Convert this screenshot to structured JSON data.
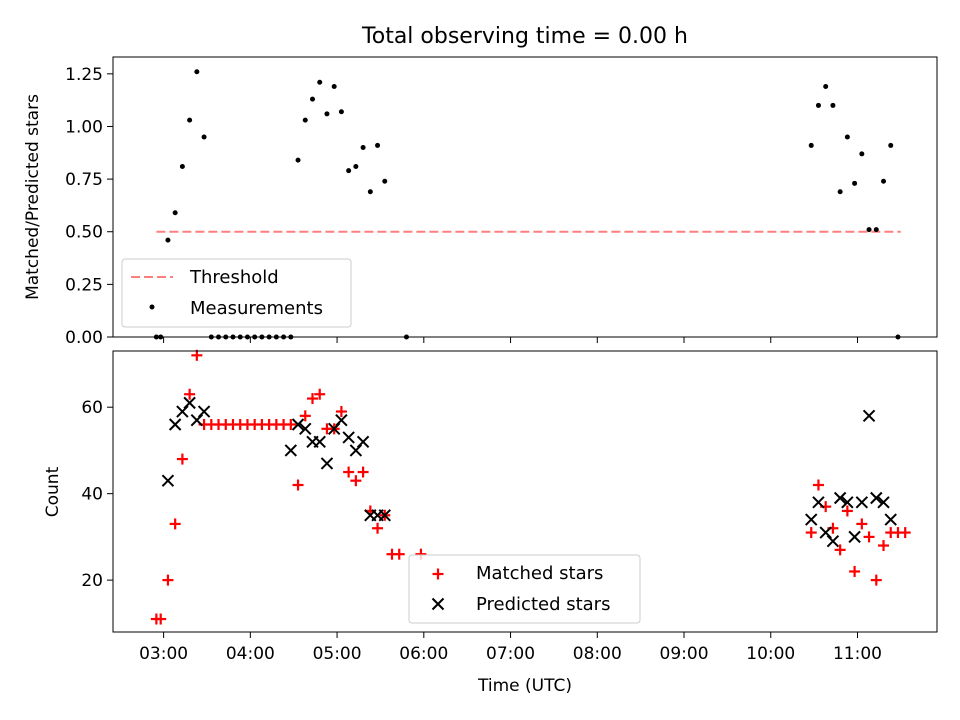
{
  "chart_data": [
    {
      "type": "scatter",
      "title": "Total observing time = 0.00 h",
      "xlabel": "",
      "ylabel": "Matched/Predicted stars",
      "ylim": [
        0,
        1.33
      ],
      "yticks": [
        "0.00",
        "0.25",
        "0.50",
        "0.75",
        "1.00",
        "1.25"
      ],
      "x_ticks_shared": true,
      "legend_position": "lower-left",
      "threshold": {
        "name": "Threshold",
        "value": 0.5,
        "x_start": "02:55",
        "x_end": "11:30",
        "color": "#ff7f7f"
      },
      "series": [
        {
          "name": "Measurements",
          "color": "#000000",
          "x": [
            "02:55",
            "02:58",
            "03:03",
            "03:08",
            "03:13",
            "03:18",
            "03:23",
            "03:28",
            "03:33",
            "03:38",
            "03:43",
            "03:48",
            "03:53",
            "03:58",
            "04:03",
            "04:08",
            "04:13",
            "04:18",
            "04:23",
            "04:28",
            "04:33",
            "04:38",
            "04:43",
            "04:48",
            "04:53",
            "04:58",
            "05:03",
            "05:08",
            "05:13",
            "05:18",
            "05:23",
            "05:28",
            "05:33",
            "05:48",
            "10:28",
            "10:33",
            "10:38",
            "10:43",
            "10:48",
            "10:53",
            "10:58",
            "11:03",
            "11:08",
            "11:13",
            "11:18",
            "11:23",
            "11:28"
          ],
          "y": [
            0.0,
            0.0,
            0.46,
            0.59,
            0.81,
            1.03,
            1.26,
            0.95,
            0.0,
            0.0,
            0.0,
            0.0,
            0.0,
            0.0,
            0.0,
            0.0,
            0.0,
            0.0,
            0.0,
            0.0,
            0.84,
            1.03,
            1.13,
            1.21,
            1.06,
            1.19,
            1.07,
            0.79,
            0.81,
            0.9,
            0.69,
            0.91,
            0.74,
            0.0,
            0.91,
            1.1,
            1.19,
            1.1,
            0.69,
            0.95,
            0.73,
            0.87,
            0.51,
            0.51,
            0.74,
            0.91,
            0.0
          ]
        }
      ]
    },
    {
      "type": "scatter",
      "title": "",
      "xlabel": "Time (UTC)",
      "ylabel": "Count",
      "ylim": [
        8,
        73
      ],
      "yticks": [
        "20",
        "40",
        "60"
      ],
      "xlim": [
        "02:25",
        "11:55"
      ],
      "xticks": [
        "03:00",
        "04:00",
        "05:00",
        "06:00",
        "07:00",
        "08:00",
        "09:00",
        "10:00",
        "11:00"
      ],
      "legend_position": "lower-center",
      "series": [
        {
          "name": "Matched stars",
          "marker": "plus",
          "color": "#ff0000",
          "x": [
            "02:55",
            "02:58",
            "03:03",
            "03:08",
            "03:13",
            "03:18",
            "03:23",
            "03:28",
            "03:33",
            "03:38",
            "03:43",
            "03:48",
            "03:53",
            "03:58",
            "04:03",
            "04:08",
            "04:13",
            "04:18",
            "04:23",
            "04:28",
            "04:33",
            "04:38",
            "04:43",
            "04:48",
            "04:53",
            "04:58",
            "05:03",
            "05:08",
            "05:13",
            "05:18",
            "05:23",
            "05:28",
            "05:33",
            "05:38",
            "05:43",
            "05:58",
            "10:28",
            "10:33",
            "10:38",
            "10:43",
            "10:48",
            "10:53",
            "10:58",
            "11:03",
            "11:08",
            "11:13",
            "11:18",
            "11:23",
            "11:28",
            "11:33"
          ],
          "y": [
            11,
            11,
            20,
            33,
            48,
            63,
            72,
            56,
            56,
            56,
            56,
            56,
            56,
            56,
            56,
            56,
            56,
            56,
            56,
            56,
            42,
            58,
            62,
            63,
            55,
            55,
            59,
            45,
            43,
            45,
            36,
            32,
            35,
            26,
            26,
            26,
            31,
            42,
            37,
            32,
            27,
            36,
            22,
            33,
            30,
            20,
            28,
            31,
            31,
            31
          ]
        },
        {
          "name": "Predicted stars",
          "marker": "x",
          "color": "#000000",
          "x": [
            "03:03",
            "03:08",
            "03:13",
            "03:18",
            "03:23",
            "03:28",
            "04:28",
            "04:33",
            "04:38",
            "04:43",
            "04:48",
            "04:53",
            "04:58",
            "05:03",
            "05:08",
            "05:13",
            "05:18",
            "05:23",
            "05:28",
            "05:33",
            "10:28",
            "10:33",
            "10:38",
            "10:43",
            "10:48",
            "10:53",
            "10:58",
            "11:03",
            "11:08",
            "11:13",
            "11:18",
            "11:23"
          ],
          "y": [
            43,
            56,
            59,
            61,
            57,
            59,
            50,
            56,
            55,
            52,
            52,
            47,
            55,
            57,
            53,
            50,
            52,
            35,
            35,
            35,
            34,
            38,
            31,
            29,
            39,
            38,
            30,
            38,
            58,
            39,
            38,
            34
          ]
        }
      ]
    }
  ]
}
